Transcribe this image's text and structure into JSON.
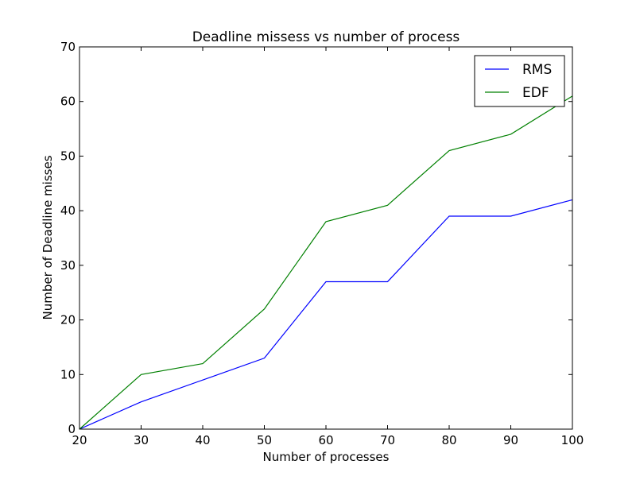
{
  "chart_data": {
    "type": "line",
    "title": "Deadline missess vs  number of process",
    "xlabel": "Number of processes",
    "ylabel": "Number of Deadline misses",
    "xlim": [
      20,
      100
    ],
    "ylim": [
      0,
      70
    ],
    "xticks": [
      20,
      30,
      40,
      50,
      60,
      70,
      80,
      90,
      100
    ],
    "yticks": [
      0,
      10,
      20,
      30,
      40,
      50,
      60,
      70
    ],
    "grid": false,
    "legend_position": "top-right",
    "x": [
      20,
      30,
      40,
      50,
      60,
      70,
      80,
      90,
      100
    ],
    "series": [
      {
        "name": "RMS",
        "color": "#0000ff",
        "values": [
          0,
          5,
          9,
          13,
          27,
          27,
          39,
          39,
          42
        ]
      },
      {
        "name": "EDF",
        "color": "#008000",
        "values": [
          0,
          10,
          12,
          22,
          38,
          41,
          51,
          54,
          61
        ]
      }
    ]
  }
}
